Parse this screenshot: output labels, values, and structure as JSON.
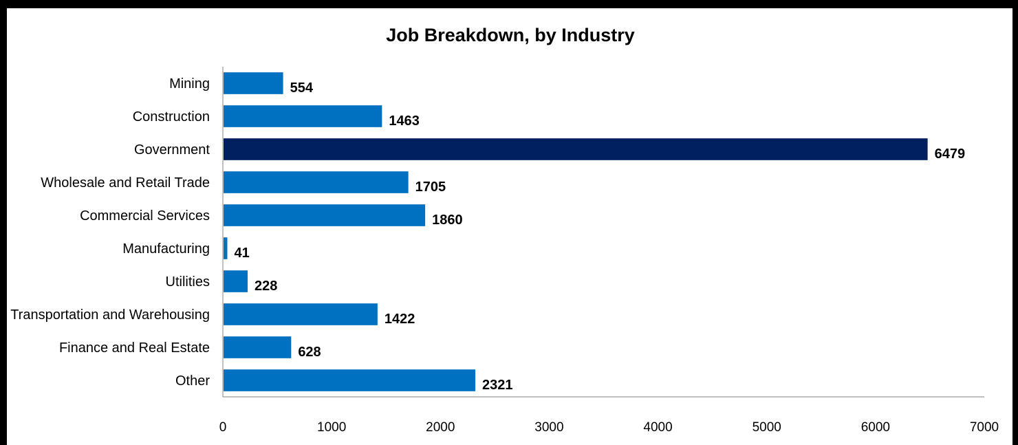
{
  "chart_data": {
    "type": "bar",
    "orientation": "horizontal",
    "title": "Job Breakdown, by Industry",
    "xlabel": "",
    "ylabel": "",
    "categories": [
      "Mining",
      "Construction",
      "Government",
      "Wholesale and Retail Trade",
      "Commercial Services",
      "Manufacturing",
      "Utilities",
      "Transportation and Warehousing",
      "Finance and Real Estate",
      "Other"
    ],
    "values": [
      554,
      1463,
      6479,
      1705,
      1860,
      41,
      228,
      1422,
      628,
      2321
    ],
    "data_labels": [
      "554",
      "1463",
      "6479",
      "1705",
      "1860",
      "41",
      "228",
      "1422",
      "628",
      "2321"
    ],
    "xlim": [
      0,
      7000
    ],
    "xticks": [
      0,
      1000,
      2000,
      3000,
      4000,
      5000,
      6000,
      7000
    ],
    "xtick_labels": [
      "0",
      "1000",
      "2000",
      "3000",
      "4000",
      "5000",
      "6000",
      "7000"
    ],
    "grid": false,
    "legend": "none",
    "bar_color": "#0070C0",
    "highlight_color": "#002060",
    "highlight_category": "Government"
  }
}
